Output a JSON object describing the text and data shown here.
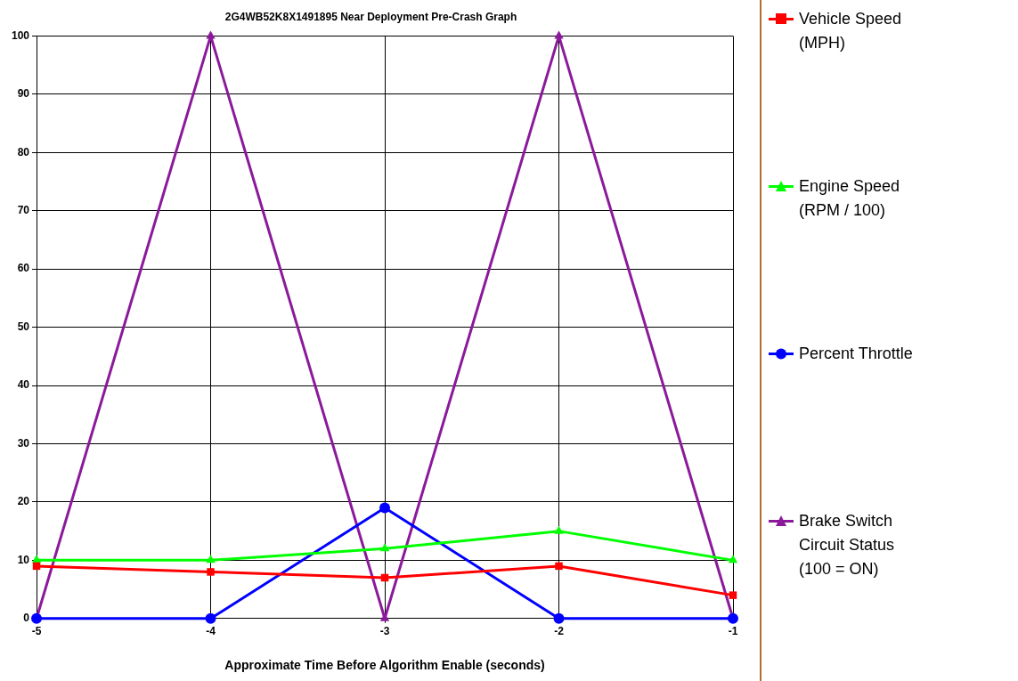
{
  "chart_data": {
    "type": "line",
    "title": "2G4WB52K8X1491895 Near Deployment Pre-Crash Graph",
    "xlabel": "Approximate Time Before Algorithm Enable (seconds)",
    "x": [
      -5,
      -4,
      -3,
      -2,
      -1
    ],
    "xlim": [
      -5,
      -1
    ],
    "xticks": [
      -5,
      -4,
      -3,
      -2,
      -1
    ],
    "ylim": [
      0,
      100
    ],
    "yticks": [
      0,
      10,
      20,
      30,
      40,
      50,
      60,
      70,
      80,
      90,
      100
    ],
    "grid": true,
    "legend": "right",
    "line_style": "solid",
    "series": [
      {
        "name": "Vehicle Speed (MPH)",
        "color": "#ff0000",
        "marker": "square",
        "values": [
          9,
          8,
          7,
          9,
          4
        ]
      },
      {
        "name": "Engine Speed (RPM / 100)",
        "color": "#00ff00",
        "marker": "triangle",
        "values": [
          10,
          10,
          12,
          15,
          10
        ]
      },
      {
        "name": "Percent Throttle",
        "color": "#0000ff",
        "marker": "circle",
        "values": [
          0,
          0,
          19,
          0,
          0
        ]
      },
      {
        "name": "Brake Switch Circuit Status (100 = ON)",
        "color": "#8b1a9b",
        "marker": "triangle",
        "values": [
          0,
          100,
          0,
          100,
          0
        ]
      }
    ]
  }
}
